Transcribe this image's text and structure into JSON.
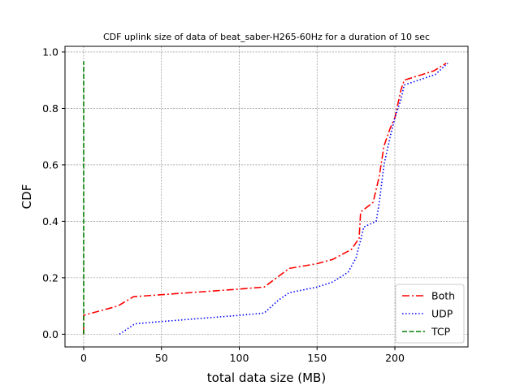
{
  "chart_data": {
    "type": "line",
    "title": "CDF uplink size of data of beat_saber-H265-60Hz for a duration of 10 sec",
    "xlabel": "total data size (MB)",
    "ylabel": "CDF",
    "xlim": [
      -12,
      247
    ],
    "ylim": [
      -0.045,
      1.02
    ],
    "xticks": [
      0,
      50,
      100,
      150,
      200
    ],
    "yticks": [
      0.0,
      0.2,
      0.4,
      0.6,
      0.8,
      1.0
    ],
    "xtick_labels": [
      "0",
      "50",
      "100",
      "150",
      "200"
    ],
    "ytick_labels": [
      "0.0",
      "0.2",
      "0.4",
      "0.6",
      "0.8",
      "1.0"
    ],
    "grid": true,
    "legend_position": "lower-right",
    "series": [
      {
        "name": "Both",
        "color": "#ff0000",
        "style": "dashdot",
        "points": [
          [
            0,
            0.0
          ],
          [
            0,
            0.067
          ],
          [
            22,
            0.1
          ],
          [
            32,
            0.133
          ],
          [
            50,
            0.14
          ],
          [
            100,
            0.16
          ],
          [
            116,
            0.167
          ],
          [
            124,
            0.2
          ],
          [
            132,
            0.233
          ],
          [
            150,
            0.25
          ],
          [
            160,
            0.265
          ],
          [
            172,
            0.3
          ],
          [
            177,
            0.34
          ],
          [
            178,
            0.433
          ],
          [
            186,
            0.467
          ],
          [
            190,
            0.56
          ],
          [
            193,
            0.667
          ],
          [
            197,
            0.73
          ],
          [
            200,
            0.767
          ],
          [
            204,
            0.867
          ],
          [
            206,
            0.9
          ],
          [
            225,
            0.933
          ],
          [
            233,
            0.96
          ]
        ]
      },
      {
        "name": "UDP",
        "color": "#0000ff",
        "style": "dotted",
        "points": [
          [
            23,
            0.0
          ],
          [
            33,
            0.037
          ],
          [
            50,
            0.045
          ],
          [
            100,
            0.067
          ],
          [
            116,
            0.075
          ],
          [
            125,
            0.12
          ],
          [
            132,
            0.147
          ],
          [
            150,
            0.167
          ],
          [
            160,
            0.185
          ],
          [
            170,
            0.22
          ],
          [
            175,
            0.27
          ],
          [
            178,
            0.333
          ],
          [
            180,
            0.38
          ],
          [
            188,
            0.4
          ],
          [
            190,
            0.467
          ],
          [
            193,
            0.6
          ],
          [
            197,
            0.7
          ],
          [
            200,
            0.767
          ],
          [
            204,
            0.833
          ],
          [
            206,
            0.883
          ],
          [
            226,
            0.92
          ],
          [
            234,
            0.96
          ]
        ]
      },
      {
        "name": "TCP",
        "color": "#008000",
        "style": "dashed",
        "points": [
          [
            0,
            0.0
          ],
          [
            0,
            0.967
          ]
        ]
      }
    ]
  }
}
